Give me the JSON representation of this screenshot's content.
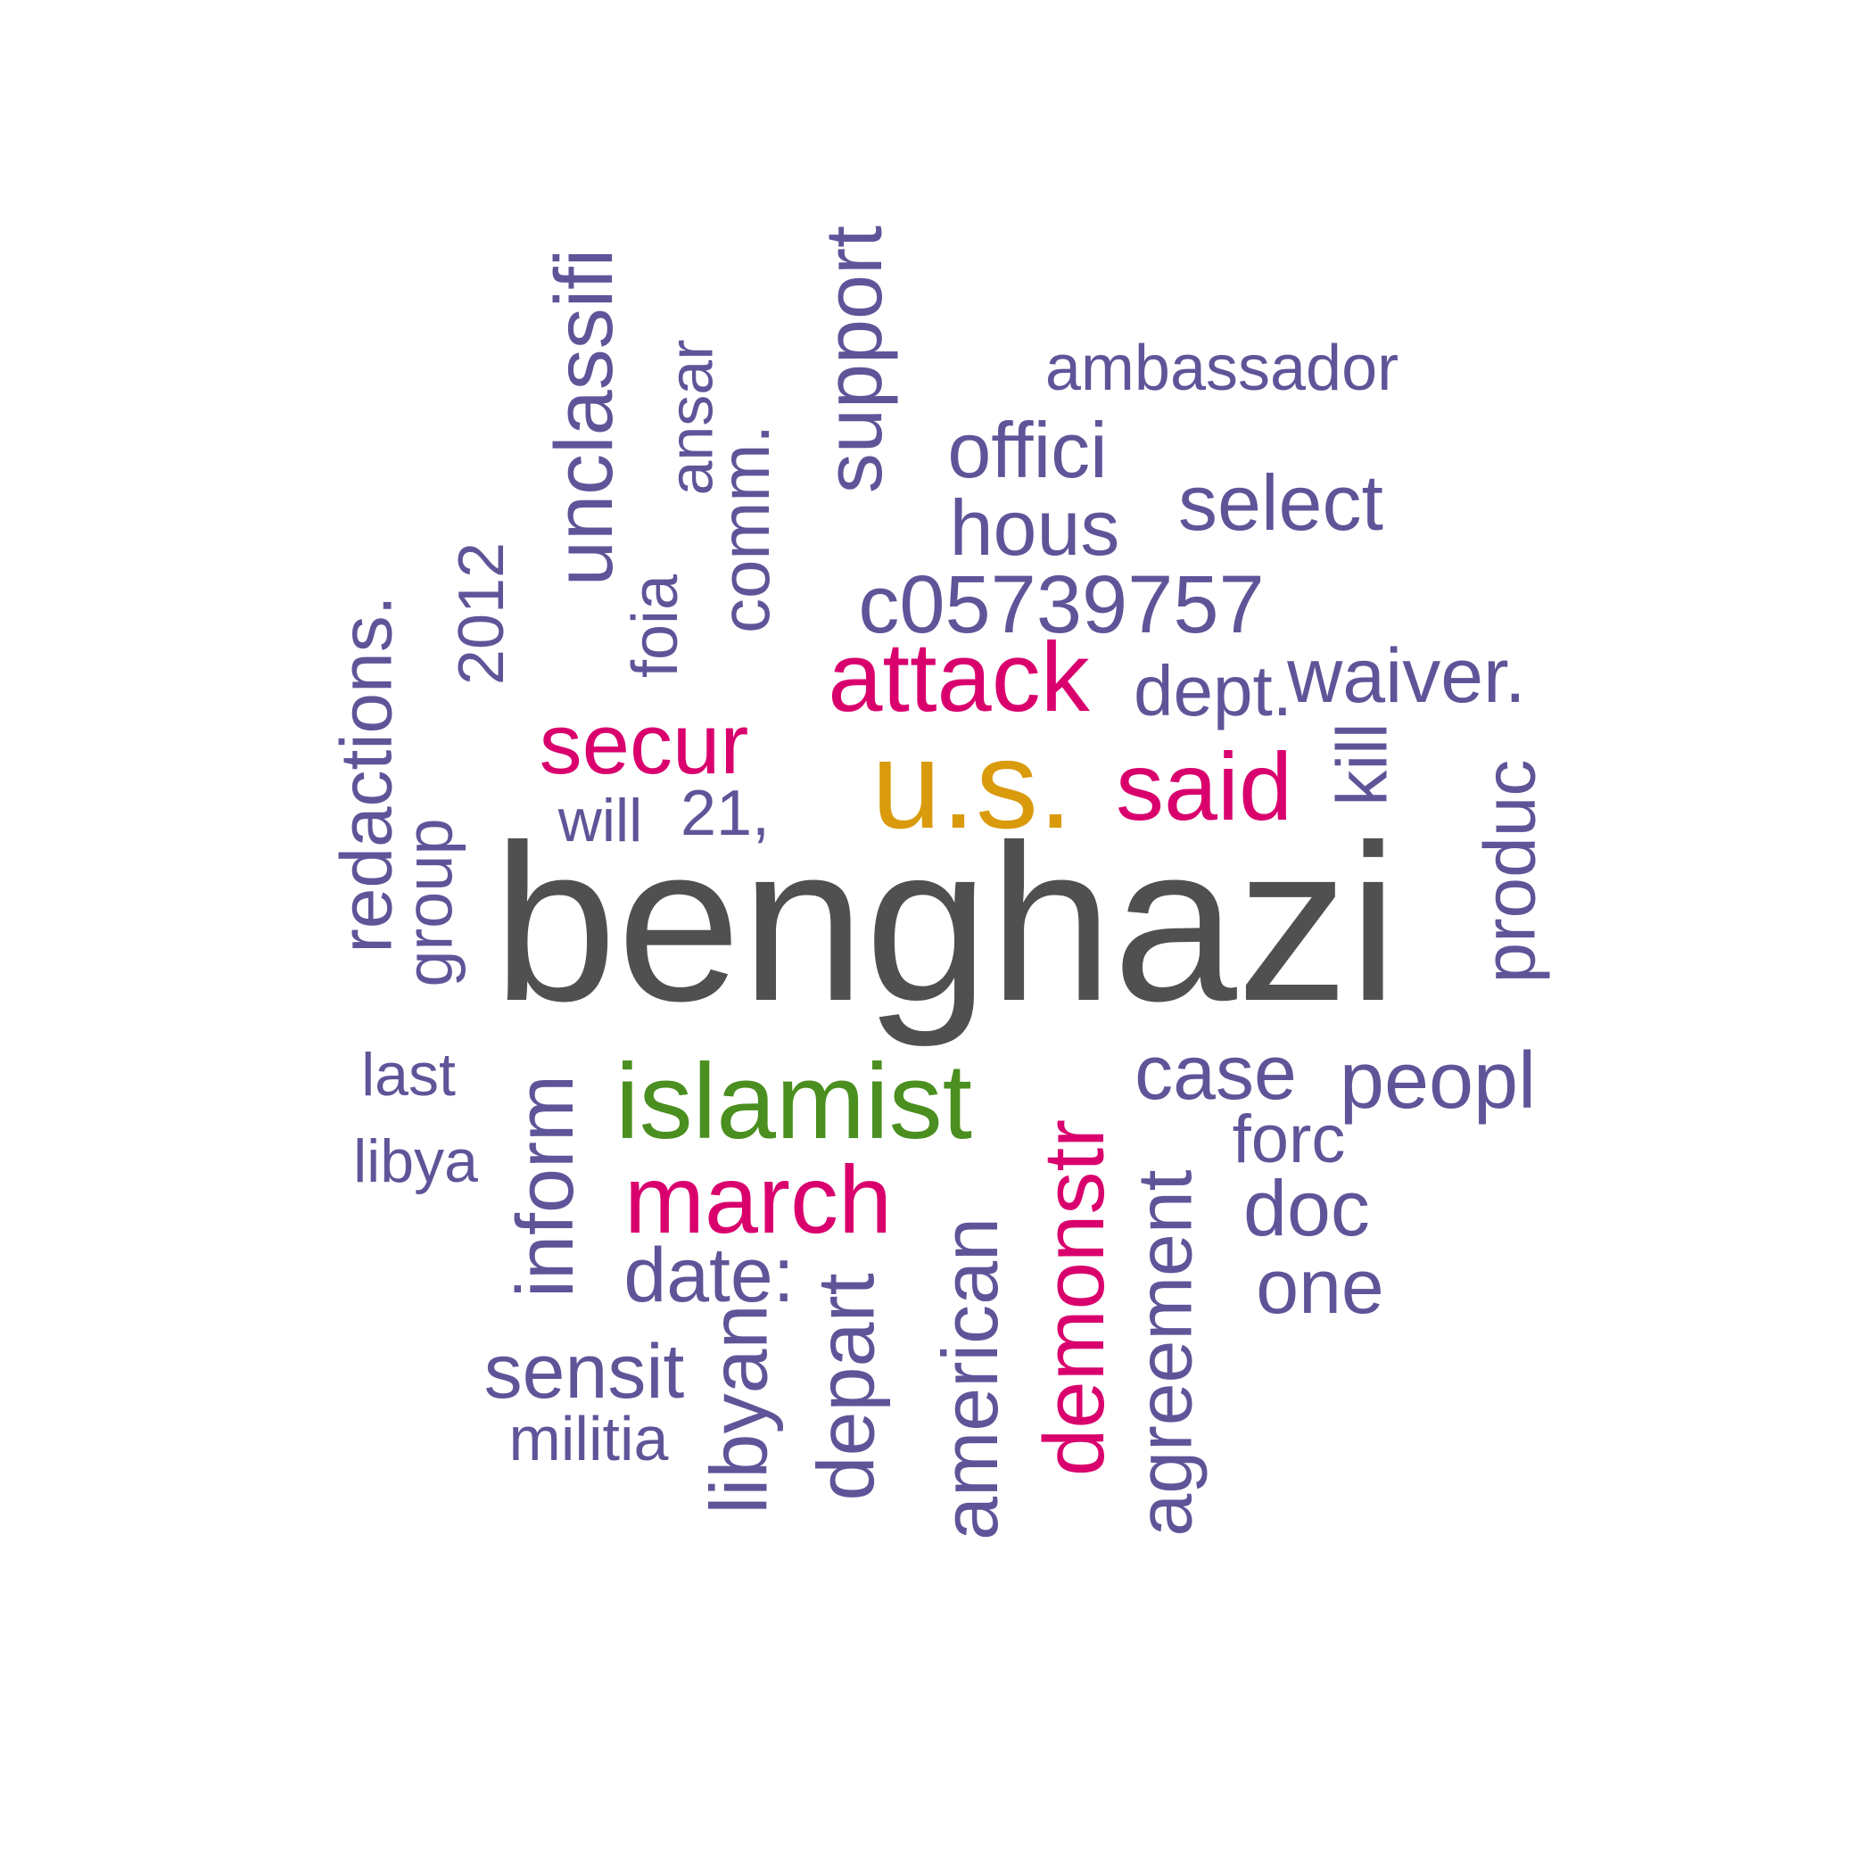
{
  "palette": {
    "top": "#505050",
    "tier2": "#d99a0c",
    "tier3": "#4a8f1f",
    "tier4": "#d9006e",
    "base": "#5e5599"
  },
  "words": [
    {
      "text": "benghazi",
      "tier": "top",
      "vertical": false
    },
    {
      "text": "u.s.",
      "tier": "tier2",
      "vertical": false
    },
    {
      "text": "islamist",
      "tier": "tier3",
      "vertical": false
    },
    {
      "text": "attack",
      "tier": "tier4",
      "vertical": false
    },
    {
      "text": "secur",
      "tier": "tier4",
      "vertical": false
    },
    {
      "text": "said",
      "tier": "tier4",
      "vertical": false
    },
    {
      "text": "march",
      "tier": "tier4",
      "vertical": false
    },
    {
      "text": "demonstr",
      "tier": "tier4",
      "vertical": true
    },
    {
      "text": "ambassador",
      "tier": "base",
      "vertical": false
    },
    {
      "text": "offici",
      "tier": "base",
      "vertical": false
    },
    {
      "text": "hous",
      "tier": "base",
      "vertical": false
    },
    {
      "text": "select",
      "tier": "base",
      "vertical": false
    },
    {
      "text": "c05739757",
      "tier": "base",
      "vertical": false
    },
    {
      "text": "dept.",
      "tier": "base",
      "vertical": false
    },
    {
      "text": "waiver.",
      "tier": "base",
      "vertical": false
    },
    {
      "text": "will",
      "tier": "base",
      "vertical": false
    },
    {
      "text": "21,",
      "tier": "base",
      "vertical": false
    },
    {
      "text": "last",
      "tier": "base",
      "vertical": false
    },
    {
      "text": "libya",
      "tier": "base",
      "vertical": false
    },
    {
      "text": "case",
      "tier": "base",
      "vertical": false
    },
    {
      "text": "peopl",
      "tier": "base",
      "vertical": false
    },
    {
      "text": "forc",
      "tier": "base",
      "vertical": false
    },
    {
      "text": "doc",
      "tier": "base",
      "vertical": false
    },
    {
      "text": "one",
      "tier": "base",
      "vertical": false
    },
    {
      "text": "date:",
      "tier": "base",
      "vertical": false
    },
    {
      "text": "sensit",
      "tier": "base",
      "vertical": false
    },
    {
      "text": "militia",
      "tier": "base",
      "vertical": false
    },
    {
      "text": "unclassifi",
      "tier": "base",
      "vertical": true
    },
    {
      "text": "ansar",
      "tier": "base",
      "vertical": true
    },
    {
      "text": "comm.",
      "tier": "base",
      "vertical": true
    },
    {
      "text": "support",
      "tier": "base",
      "vertical": true
    },
    {
      "text": "foia",
      "tier": "base",
      "vertical": true
    },
    {
      "text": "2012",
      "tier": "base",
      "vertical": true
    },
    {
      "text": "redactions.",
      "tier": "base",
      "vertical": true
    },
    {
      "text": "group",
      "tier": "base",
      "vertical": true
    },
    {
      "text": "kill",
      "tier": "base",
      "vertical": true
    },
    {
      "text": "produc",
      "tier": "base",
      "vertical": true
    },
    {
      "text": "inform",
      "tier": "base",
      "vertical": true
    },
    {
      "text": "libyan",
      "tier": "base",
      "vertical": true
    },
    {
      "text": "depart",
      "tier": "base",
      "vertical": true
    },
    {
      "text": "american",
      "tier": "base",
      "vertical": true
    },
    {
      "text": "agreement",
      "tier": "base",
      "vertical": true
    }
  ]
}
